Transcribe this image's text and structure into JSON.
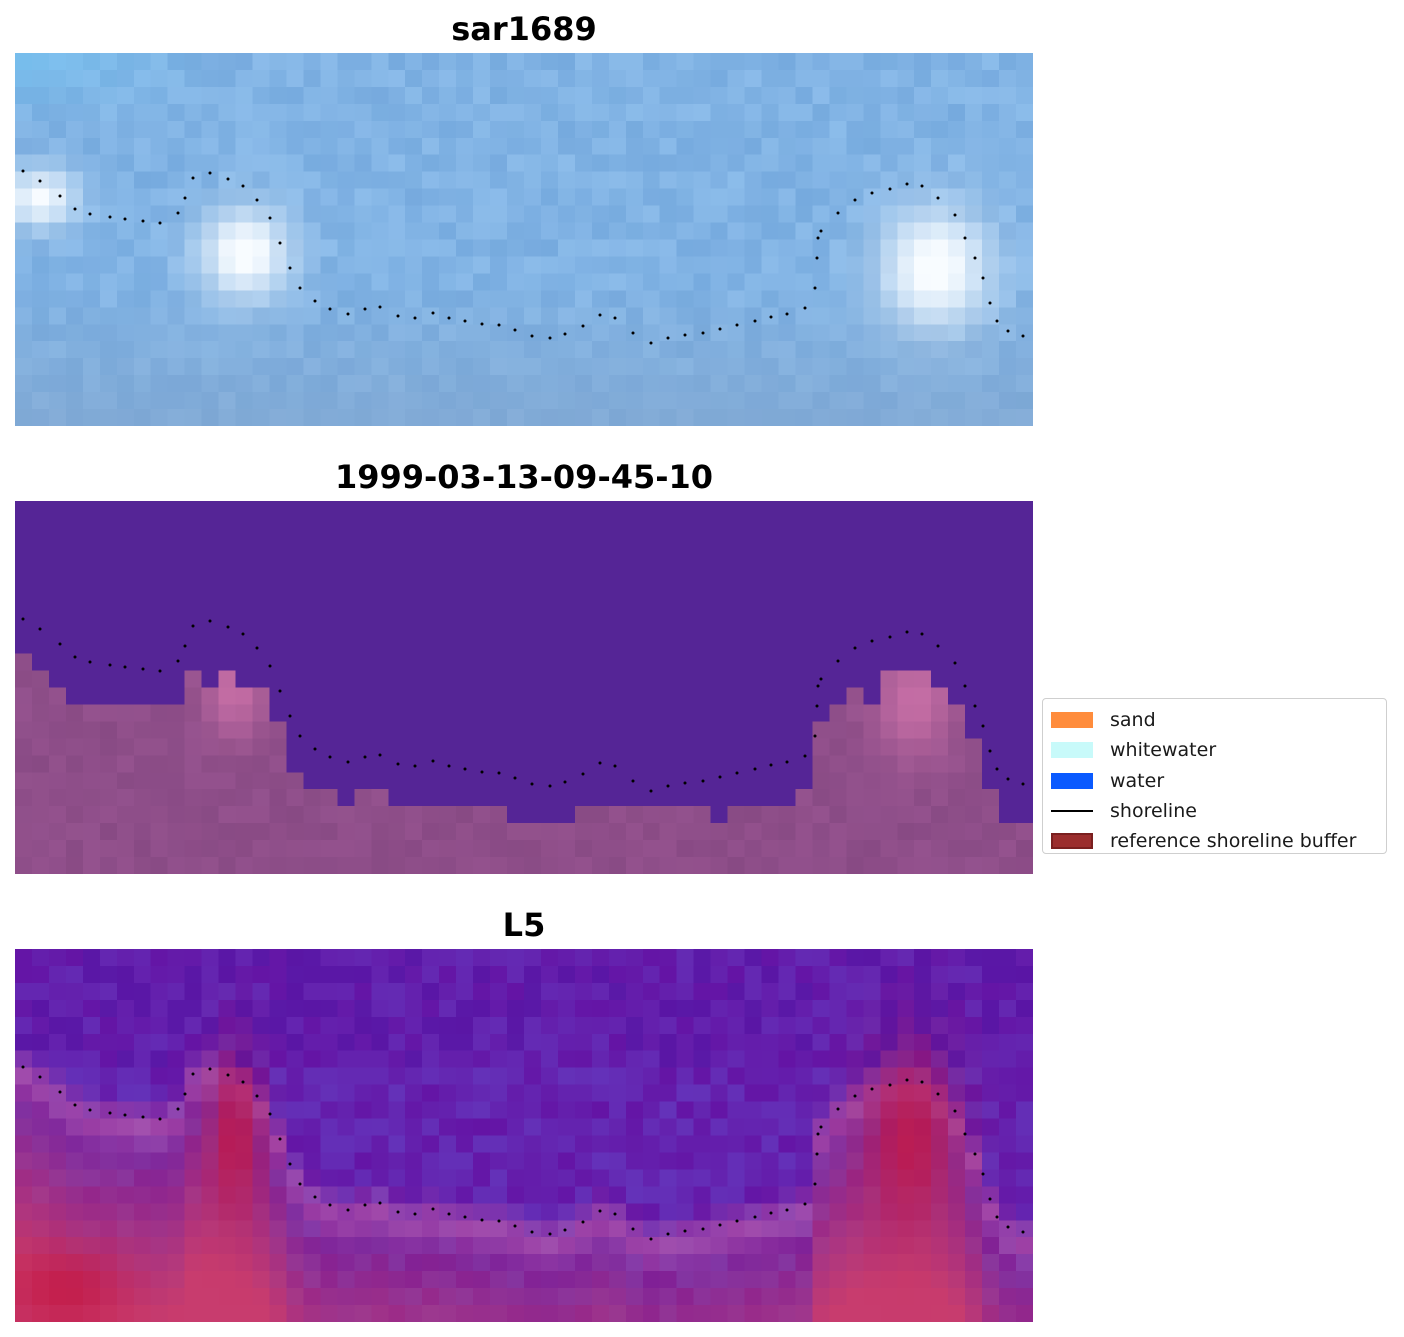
{
  "panels": [
    {
      "title": "sar1689",
      "style": "sar"
    },
    {
      "title": "1999-03-13-09-45-10",
      "style": "classified"
    },
    {
      "title": "L5",
      "style": "ndwi"
    }
  ],
  "legend": {
    "items": [
      {
        "label": "sand",
        "color": "#ff8c3c",
        "kind": "patch"
      },
      {
        "label": "whitewater",
        "color": "#c8fafa",
        "kind": "patch"
      },
      {
        "label": "water",
        "color": "#0a5aff",
        "kind": "patch"
      },
      {
        "label": "shoreline",
        "color": "#000000",
        "kind": "line"
      },
      {
        "label": "reference shoreline buffer",
        "color": "#9b2d2d",
        "edge": "#7a1f1f",
        "kind": "patch"
      }
    ]
  },
  "colors": {
    "classified_water": "#552596",
    "classified_land": "#884b84",
    "shoreline_points": "#000000"
  }
}
